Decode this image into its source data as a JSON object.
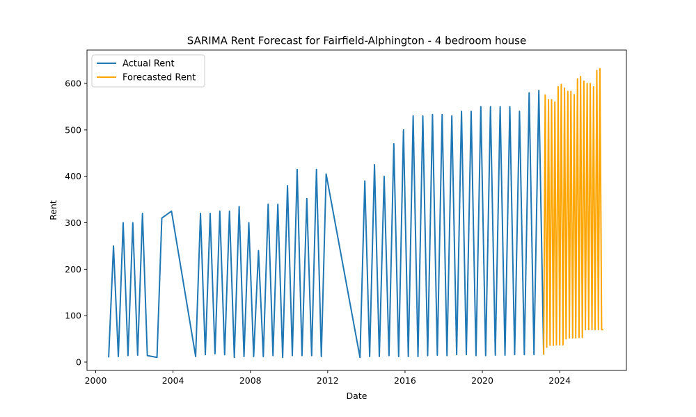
{
  "chart_data": {
    "type": "line",
    "title": "SARIMA Rent Forecast for Fairfield-Alphington - 4 bedroom house",
    "xlabel": "Date",
    "ylabel": "Rent",
    "xlim": [
      1999.55,
      2027.45
    ],
    "ylim": [
      -18,
      672
    ],
    "x_ticks": [
      2000,
      2004,
      2008,
      2012,
      2016,
      2020,
      2024
    ],
    "y_ticks": [
      0,
      100,
      200,
      300,
      400,
      500,
      600
    ],
    "legend": {
      "position": "top-left",
      "entries": [
        "Actual Rent",
        "Forecasted Rent"
      ]
    },
    "grid": false,
    "series": [
      {
        "name": "Actual Rent",
        "color": "#1f77b4",
        "x": [
          2000.67,
          2000.92,
          2001.17,
          2001.42,
          2001.67,
          2001.92,
          2002.17,
          2002.42,
          2002.67,
          2003.17,
          2003.42,
          2003.92,
          2005.17,
          2005.42,
          2005.67,
          2005.92,
          2006.17,
          2006.42,
          2006.67,
          2006.92,
          2007.17,
          2007.42,
          2007.67,
          2007.92,
          2008.17,
          2008.42,
          2008.67,
          2008.92,
          2009.17,
          2009.42,
          2009.67,
          2009.92,
          2010.17,
          2010.42,
          2010.67,
          2010.92,
          2011.17,
          2011.42,
          2011.67,
          2011.92,
          2013.67,
          2013.92,
          2014.17,
          2014.42,
          2014.67,
          2014.92,
          2015.17,
          2015.42,
          2015.67,
          2015.92,
          2016.17,
          2016.42,
          2016.67,
          2016.92,
          2017.17,
          2017.42,
          2017.67,
          2017.92,
          2018.17,
          2018.42,
          2018.67,
          2018.92,
          2019.17,
          2019.42,
          2019.67,
          2019.92,
          2020.17,
          2020.42,
          2020.67,
          2020.92,
          2021.17,
          2021.42,
          2021.67,
          2021.92,
          2022.17,
          2022.42,
          2022.67,
          2022.92,
          2023.17
        ],
        "y": [
          10,
          250,
          12,
          300,
          14,
          300,
          15,
          320,
          14,
          10,
          310,
          325,
          12,
          320,
          16,
          320,
          18,
          325,
          16,
          325,
          10,
          335,
          12,
          300,
          12,
          240,
          12,
          340,
          14,
          340,
          10,
          380,
          14,
          415,
          14,
          352,
          14,
          415,
          12,
          405,
          10,
          390,
          12,
          425,
          12,
          400,
          14,
          470,
          12,
          500,
          12,
          530,
          12,
          530,
          14,
          533,
          15,
          533,
          14,
          530,
          16,
          540,
          16,
          540,
          14,
          550,
          14,
          550,
          15,
          550,
          15,
          550,
          16,
          540,
          16,
          580,
          16,
          585,
          16
        ]
      },
      {
        "name": "Forecasted Rent",
        "color": "#ffa500",
        "x": [
          2023.17,
          2023.25,
          2023.33,
          2023.42,
          2023.5,
          2023.58,
          2023.67,
          2023.75,
          2023.83,
          2023.92,
          2024.0,
          2024.08,
          2024.17,
          2024.25,
          2024.33,
          2024.42,
          2024.5,
          2024.58,
          2024.67,
          2024.75,
          2024.83,
          2024.92,
          2025.0,
          2025.08,
          2025.17,
          2025.25,
          2025.33,
          2025.42,
          2025.5,
          2025.58,
          2025.67,
          2025.75,
          2025.83,
          2025.92,
          2026.0,
          2026.08,
          2026.17,
          2026.25
        ],
        "y": [
          16,
          575,
          32,
          565,
          36,
          565,
          36,
          560,
          37,
          593,
          37,
          598,
          37,
          590,
          50,
          583,
          52,
          583,
          52,
          576,
          52,
          610,
          53,
          615,
          53,
          605,
          70,
          600,
          70,
          600,
          70,
          593,
          70,
          628,
          70,
          632,
          70,
          70
        ]
      }
    ]
  }
}
